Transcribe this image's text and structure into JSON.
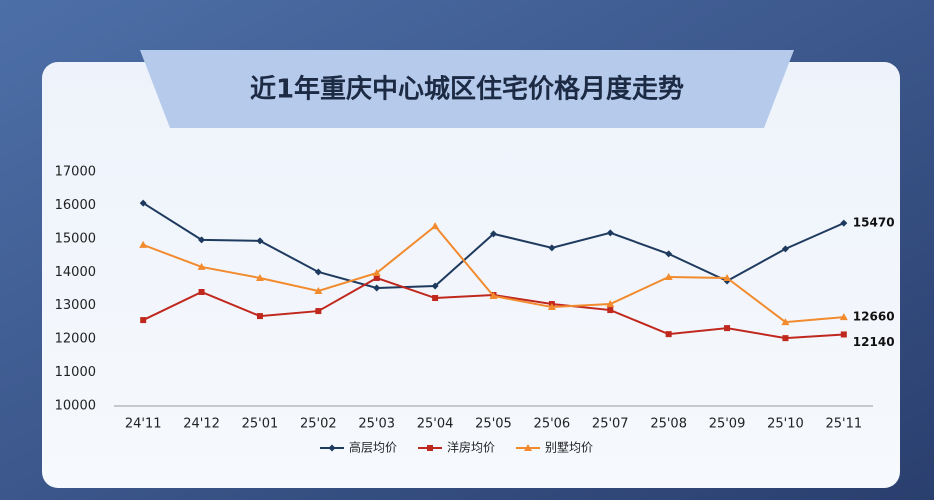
{
  "chart_data": {
    "type": "line",
    "title": "近1年重庆中心城区住宅价格月度走势",
    "categories": [
      "24'11",
      "24'12",
      "25'01",
      "25'02",
      "25'03",
      "25'04",
      "25'05",
      "25'06",
      "25'07",
      "25'08",
      "25'09",
      "25'10",
      "25'11"
    ],
    "series": [
      {
        "name": "高层均价",
        "color": "#1f3a5f",
        "marker": "diamond",
        "values": [
          16070,
          14970,
          14940,
          14010,
          13530,
          13590,
          15150,
          14730,
          15180,
          14550,
          13740,
          14700,
          15470
        ]
      },
      {
        "name": "洋房均价",
        "color": "#c0281e",
        "marker": "square",
        "values": [
          12570,
          13410,
          12690,
          12840,
          13830,
          13230,
          13320,
          13050,
          12870,
          12150,
          12330,
          12030,
          12140
        ]
      },
      {
        "name": "别墅均价",
        "color": "#f28a2e",
        "marker": "triangle",
        "values": [
          14820,
          14160,
          13830,
          13440,
          13980,
          15380,
          13290,
          12960,
          13050,
          13860,
          13830,
          12510,
          12660
        ]
      }
    ],
    "ylim": [
      10000,
      17000
    ],
    "yticks": [
      10000,
      11000,
      12000,
      13000,
      14000,
      15000,
      16000,
      17000
    ],
    "grid": false,
    "legend": "bottom"
  }
}
